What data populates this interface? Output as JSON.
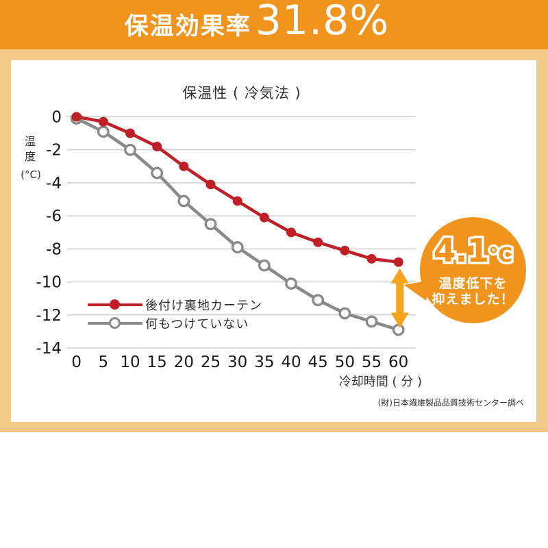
{
  "header": {
    "label": "保温効果率",
    "value": "31.8%"
  },
  "chart_data": {
    "type": "line",
    "title": "保温性 ( 冷気法 )",
    "x": [
      0,
      5,
      10,
      15,
      20,
      25,
      30,
      35,
      40,
      45,
      50,
      55,
      60
    ],
    "xlabel": "冷却時間 ( 分 )",
    "ylabel": "温度",
    "y_unit": "(°C)",
    "ylim": [
      -14,
      0
    ],
    "ytick_step": 2,
    "grid": true,
    "legend_position": "lower-left",
    "series": [
      {
        "name": "後付け裏地カーテン",
        "color": "#c01f27",
        "marker": "filled",
        "values": [
          0,
          -0.3,
          -1.0,
          -1.8,
          -3.0,
          -4.1,
          -5.1,
          -6.1,
          -7.0,
          -7.6,
          -8.1,
          -8.6,
          -8.8
        ]
      },
      {
        "name": "何もつけていない",
        "color": "#8a8a8a",
        "marker": "open",
        "values": [
          -0.1,
          -0.9,
          -2.0,
          -3.4,
          -5.1,
          -6.5,
          -7.9,
          -9.0,
          -10.1,
          -11.1,
          -11.9,
          -12.4,
          -12.9
        ]
      }
    ],
    "annotation": {
      "value": "4.1",
      "unit": "℃",
      "line1": "温度低下を",
      "line2": "抑えました！",
      "arrow_x": 60,
      "arrow_from": -8.8,
      "arrow_to": -12.9,
      "arrow_color": "#f6a41c",
      "badge_color": "#f0941d"
    }
  },
  "colors": {
    "header_bg": "#f0941d",
    "frame_bg": "#f2cb86",
    "grid": "#c8c8c8",
    "tick_text": "#1a1a1a"
  },
  "source_note": "(財)日本繊維製品品質技術センター調べ"
}
